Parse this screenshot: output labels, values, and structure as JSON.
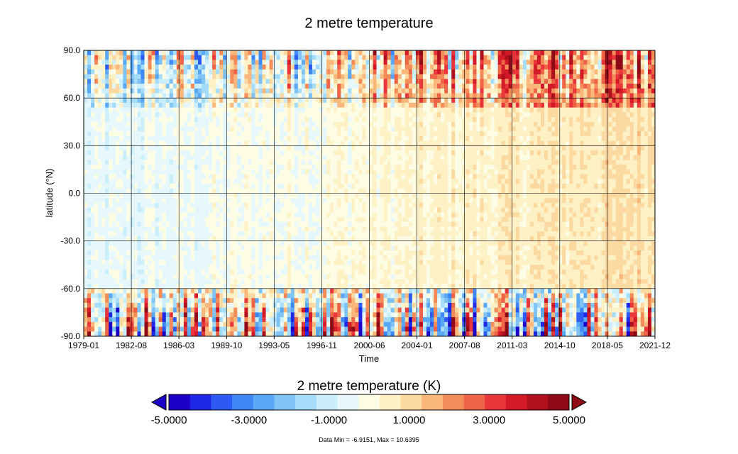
{
  "chart_data": {
    "type": "heatmap",
    "title": "2 metre temperature",
    "xlabel": "Time",
    "ylabel": "latitude (°N)",
    "x_ticks": [
      "1979-01",
      "1982-08",
      "1986-03",
      "1989-10",
      "1993-05",
      "1996-11",
      "2000-06",
      "2004-01",
      "2007-08",
      "2011-03",
      "2014-10",
      "2018-05",
      "2021-12"
    ],
    "y_ticks": [
      "90.0",
      "60.0",
      "30.0",
      "0.0",
      "-30.0",
      "-60.0",
      "-90.0"
    ],
    "xlim": [
      "1979-01",
      "2021-12"
    ],
    "ylim": [
      -90,
      90
    ],
    "grid": true,
    "colorbar": {
      "title": "2 metre temperature (K)",
      "range": [
        -5,
        5
      ],
      "levels": 20,
      "tick_labels": [
        "-5.0000",
        "-3.0000",
        "-1.0000",
        "1.0000",
        "3.0000",
        "5.0000"
      ],
      "colors": [
        "#1d00c8",
        "#1f28e6",
        "#2d5af5",
        "#3f86f7",
        "#5aa8f5",
        "#7fc3f5",
        "#a5dcfa",
        "#cbeefc",
        "#e7f8fd",
        "#fdfde5",
        "#fef1c6",
        "#fcd9a0",
        "#f9b77b",
        "#f48c5a",
        "#ef6347",
        "#e8363a",
        "#d21a28",
        "#b0101c",
        "#8e0a16"
      ]
    },
    "pattern_description_values": {
      "arctic_trend_K": [
        -2.5,
        3.5
      ],
      "tropics_trend_K": [
        -0.5,
        0.8
      ],
      "antarctic_variability_K": 4
    }
  },
  "footer": {
    "stats": "Data Min = -6.9151, Max = 10.6395"
  }
}
